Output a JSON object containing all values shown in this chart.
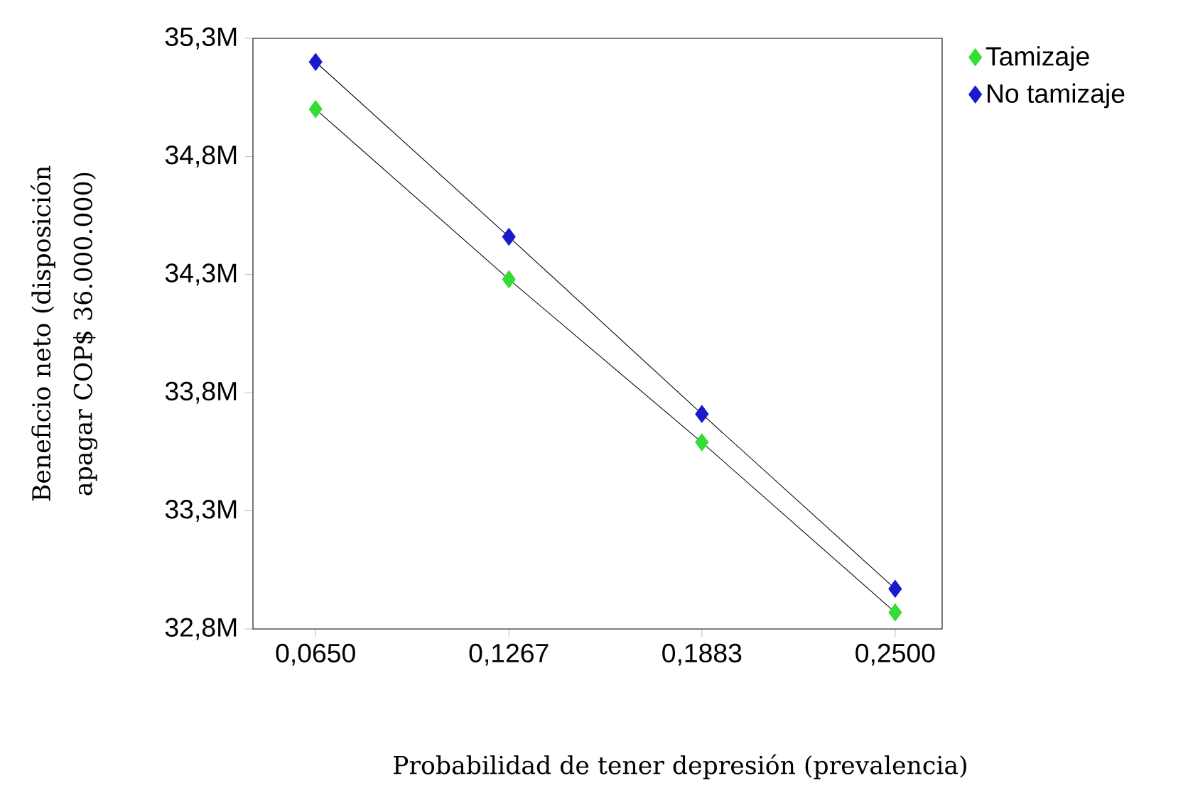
{
  "chart_data": {
    "type": "line",
    "xlabel": "Probabilidad de tener depresión (prevalencia)",
    "ylabel": "Beneficio neto (disposición apagar COP$ 36.000.000)",
    "x": [
      0.065,
      0.1267,
      0.1883,
      0.25
    ],
    "series": [
      {
        "name": "Tamizaje",
        "color": "#33dd33",
        "values": [
          35000000,
          34280000,
          33590000,
          32870000
        ]
      },
      {
        "name": "No tamizaje",
        "color": "#1a1acc",
        "values": [
          35200000,
          34460000,
          33710000,
          32970000
        ]
      }
    ],
    "xlim": [
      0.045,
      0.265
    ],
    "xticks": [
      {
        "value": 0.065,
        "label": "0,0650"
      },
      {
        "value": 0.1267,
        "label": "0,1267"
      },
      {
        "value": 0.1883,
        "label": "0,1883"
      },
      {
        "value": 0.25,
        "label": "0,2500"
      }
    ],
    "ylim": [
      32800000,
      35300000
    ],
    "yticks": [
      {
        "value": 32800000,
        "label": "32,8M"
      },
      {
        "value": 33300000,
        "label": "33,3M"
      },
      {
        "value": 33800000,
        "label": "33,8M"
      },
      {
        "value": 34300000,
        "label": "34,3M"
      },
      {
        "value": 34800000,
        "label": "34,8M"
      },
      {
        "value": 35300000,
        "label": "35,3M"
      }
    ],
    "marker": "diamond",
    "line_style": "solid",
    "grid": false,
    "legend": "right"
  }
}
